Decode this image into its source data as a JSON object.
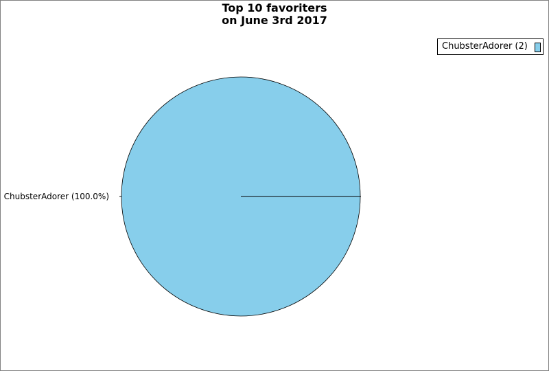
{
  "chart_data": {
    "type": "pie",
    "title": [
      "Top 10 favoriters",
      "on June 3rd 2017"
    ],
    "slices": [
      {
        "name": "ChubsterAdorer",
        "value": 2,
        "percent": 100.0,
        "color": "#87ceeb",
        "label": "ChubsterAdorer (100.0%)",
        "legend": "ChubsterAdorer (2)"
      }
    ],
    "legend_position": "top-right"
  }
}
